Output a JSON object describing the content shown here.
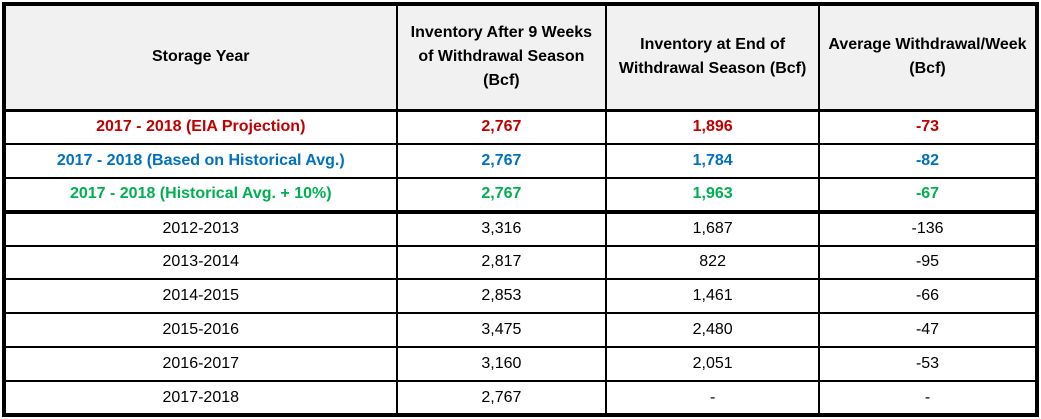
{
  "chart_data": {
    "type": "table",
    "title": "",
    "legend_position": "none",
    "columns": [
      "Storage Year",
      "Inventory After 9 Weeks of Withdrawal Season (Bcf)",
      "Inventory at End of Withdrawal Season (Bcf)",
      "Average Withdrawal/Week (Bcf)"
    ],
    "rows": [
      {
        "storage_year": "2017 - 2018 (EIA Projection)",
        "cells": [
          "2,767",
          "1,896",
          "-73"
        ],
        "numeric": [
          2767,
          1896,
          -73
        ],
        "color": "#c00000",
        "bold": true
      },
      {
        "storage_year": "2017 - 2018 (Based on Historical Avg.)",
        "cells": [
          "2,767",
          "1,784",
          "-82"
        ],
        "numeric": [
          2767,
          1784,
          -82
        ],
        "color": "#0070c0",
        "bold": true
      },
      {
        "storage_year": "2017 - 2018 (Historical Avg. + 10%)",
        "cells": [
          "2,767",
          "1,963",
          "-67"
        ],
        "numeric": [
          2767,
          1963,
          -67
        ],
        "color": "#00b050",
        "bold": true
      },
      {
        "storage_year": "2012-2013",
        "cells": [
          "3,316",
          "1,687",
          "-136"
        ],
        "numeric": [
          3316,
          1687,
          -136
        ],
        "color": "#000000",
        "bold": false
      },
      {
        "storage_year": "2013-2014",
        "cells": [
          "2,817",
          "822",
          "-95"
        ],
        "numeric": [
          2817,
          822,
          -95
        ],
        "color": "#000000",
        "bold": false
      },
      {
        "storage_year": "2014-2015",
        "cells": [
          "2,853",
          "1,461",
          "-66"
        ],
        "numeric": [
          2853,
          1461,
          -66
        ],
        "color": "#000000",
        "bold": false
      },
      {
        "storage_year": "2015-2016",
        "cells": [
          "3,475",
          "2,480",
          "-47"
        ],
        "numeric": [
          3475,
          2480,
          -47
        ],
        "color": "#000000",
        "bold": false
      },
      {
        "storage_year": "2016-2017",
        "cells": [
          "3,160",
          "2,051",
          "-53"
        ],
        "numeric": [
          3160,
          2051,
          -53
        ],
        "color": "#000000",
        "bold": false
      },
      {
        "storage_year": "2017-2018",
        "cells": [
          "2,767",
          "-",
          "-"
        ],
        "numeric": [
          2767,
          null,
          null
        ],
        "color": "#000000",
        "bold": false
      }
    ],
    "styles": {
      "header_bg": "#f1f1f1",
      "border_color": "#000000",
      "projection_red": "#c00000",
      "projection_blue": "#0070c0",
      "projection_green": "#00b050"
    }
  }
}
